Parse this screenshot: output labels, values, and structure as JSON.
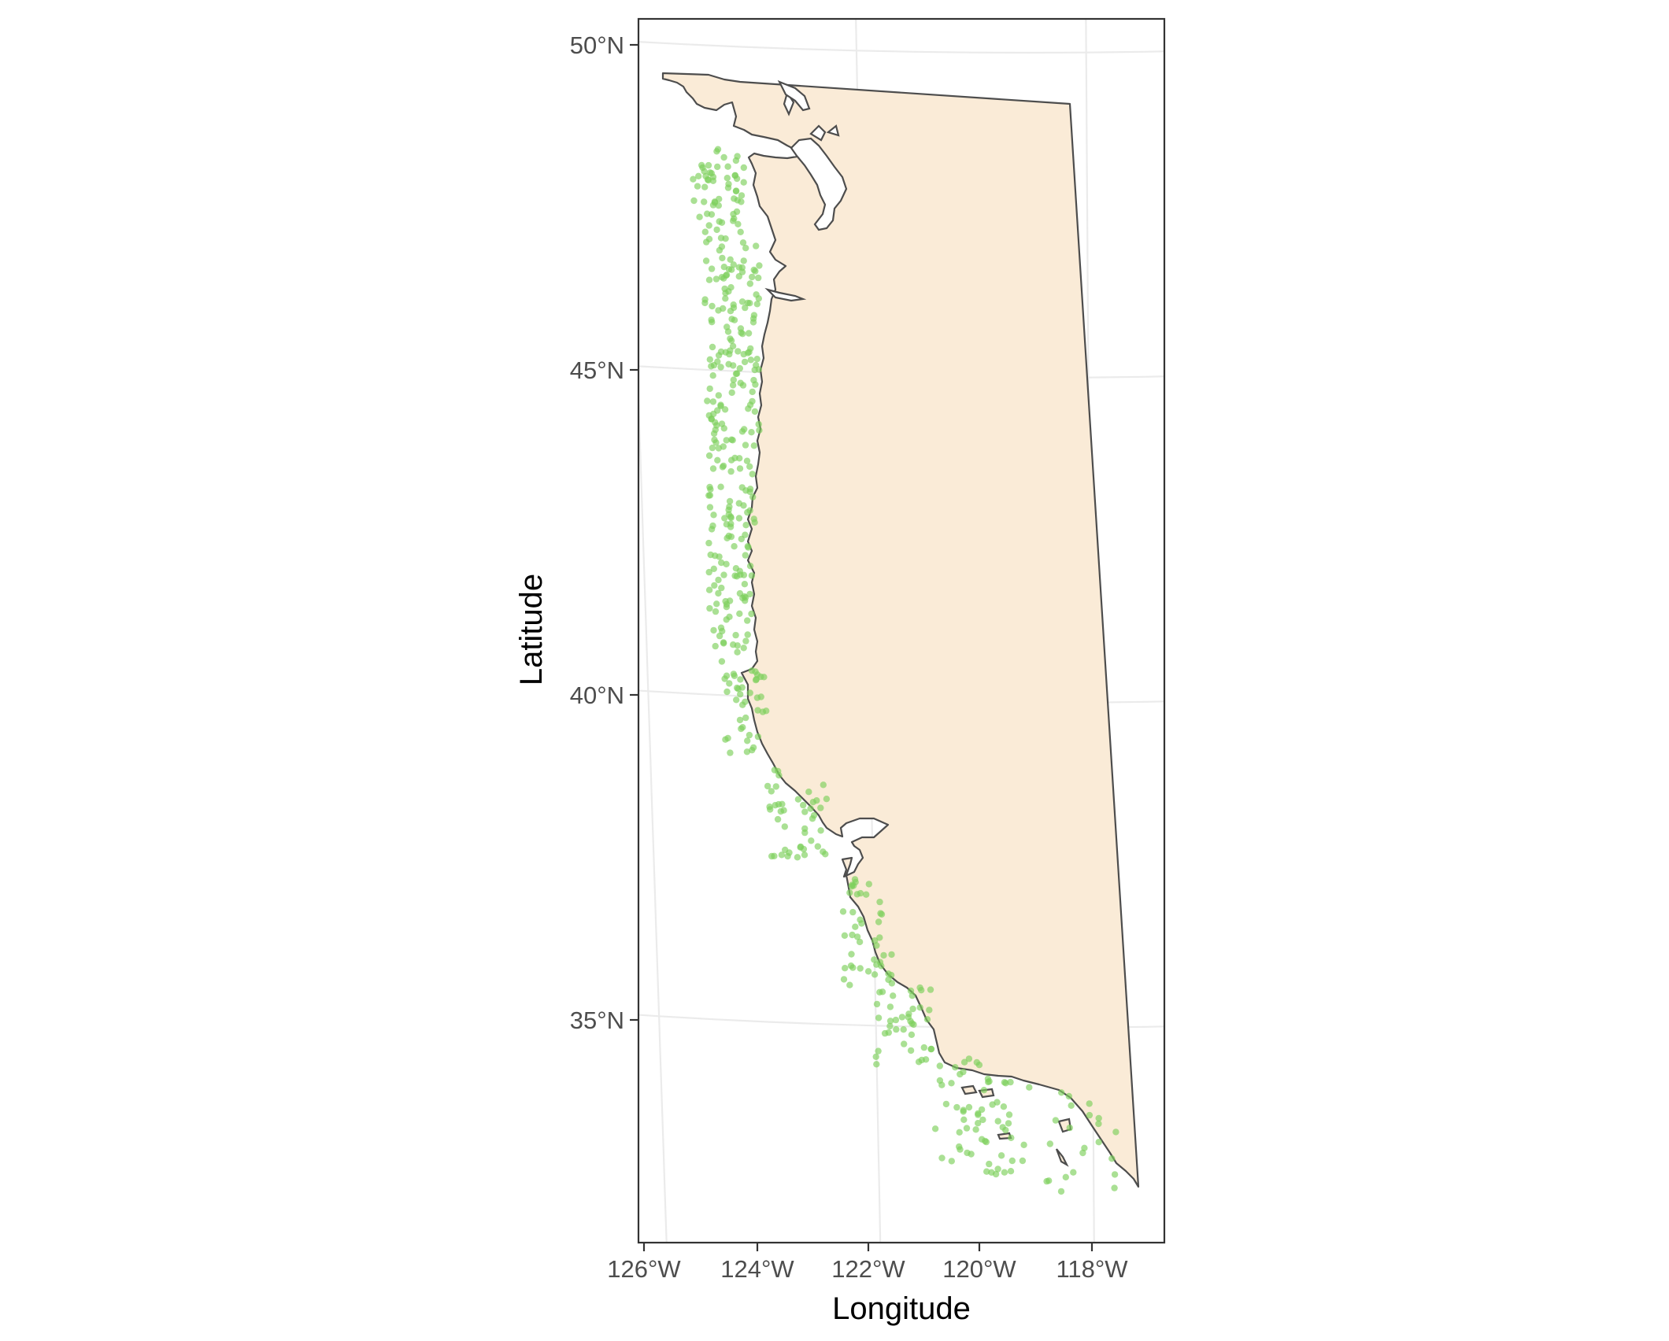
{
  "chart_data": {
    "type": "scatter",
    "map": "US West Coast (Washington, Oregon, California)",
    "xlabel": "Longitude",
    "ylabel": "Latitude",
    "xlim": [
      -126.1,
      -116.7
    ],
    "ylim": [
      31.7,
      50.4
    ],
    "x_ticks": [
      -126,
      -124,
      -122,
      -120,
      -118
    ],
    "x_tick_labels": [
      "126°W",
      "124°W",
      "122°W",
      "120°W",
      "118°W"
    ],
    "y_ticks": [
      35,
      40,
      45,
      50
    ],
    "y_tick_labels": [
      "35°N",
      "40°N",
      "45°N",
      "50°N"
    ],
    "grid": true,
    "land_color": "#FAEBD7",
    "land_outline_color": "#4d4d4d",
    "point_color": "#7CCF5A",
    "point_opacity": 0.65,
    "point_density_per_cell": [
      {
        "lat_range": [
          47.0,
          48.4
        ],
        "lon_range": [
          -125.0,
          -124.4
        ],
        "n": 60
      },
      {
        "lat_range": [
          45.6,
          47.0
        ],
        "lon_range": [
          -124.8,
          -124.1
        ],
        "n": 60
      },
      {
        "lat_range": [
          44.0,
          45.6
        ],
        "lon_range": [
          -124.9,
          -124.1
        ],
        "n": 70
      },
      {
        "lat_range": [
          42.0,
          44.0
        ],
        "lon_range": [
          -124.9,
          -124.2
        ],
        "n": 70
      },
      {
        "lat_range": [
          40.5,
          42.0
        ],
        "lon_range": [
          -124.9,
          -124.2
        ],
        "n": 50
      },
      {
        "lat_range": [
          39.0,
          40.4
        ],
        "lon_range": [
          -124.6,
          -123.8
        ],
        "n": 40
      },
      {
        "lat_range": [
          37.5,
          39.0
        ],
        "lon_range": [
          -123.6,
          -122.8
        ],
        "n": 45
      },
      {
        "lat_range": [
          35.5,
          37.2
        ],
        "lon_range": [
          -122.5,
          -121.5
        ],
        "n": 45
      },
      {
        "lat_range": [
          34.3,
          35.5
        ],
        "lon_range": [
          -121.3,
          -120.6
        ],
        "n": 40
      },
      {
        "lat_range": [
          33.8,
          34.3
        ],
        "lon_range": [
          -120.6,
          -119.3
        ],
        "n": 45
      },
      {
        "lat_range": [
          32.8,
          33.8
        ],
        "lon_range": [
          -119.4,
          -117.3
        ],
        "n": 40
      }
    ]
  }
}
